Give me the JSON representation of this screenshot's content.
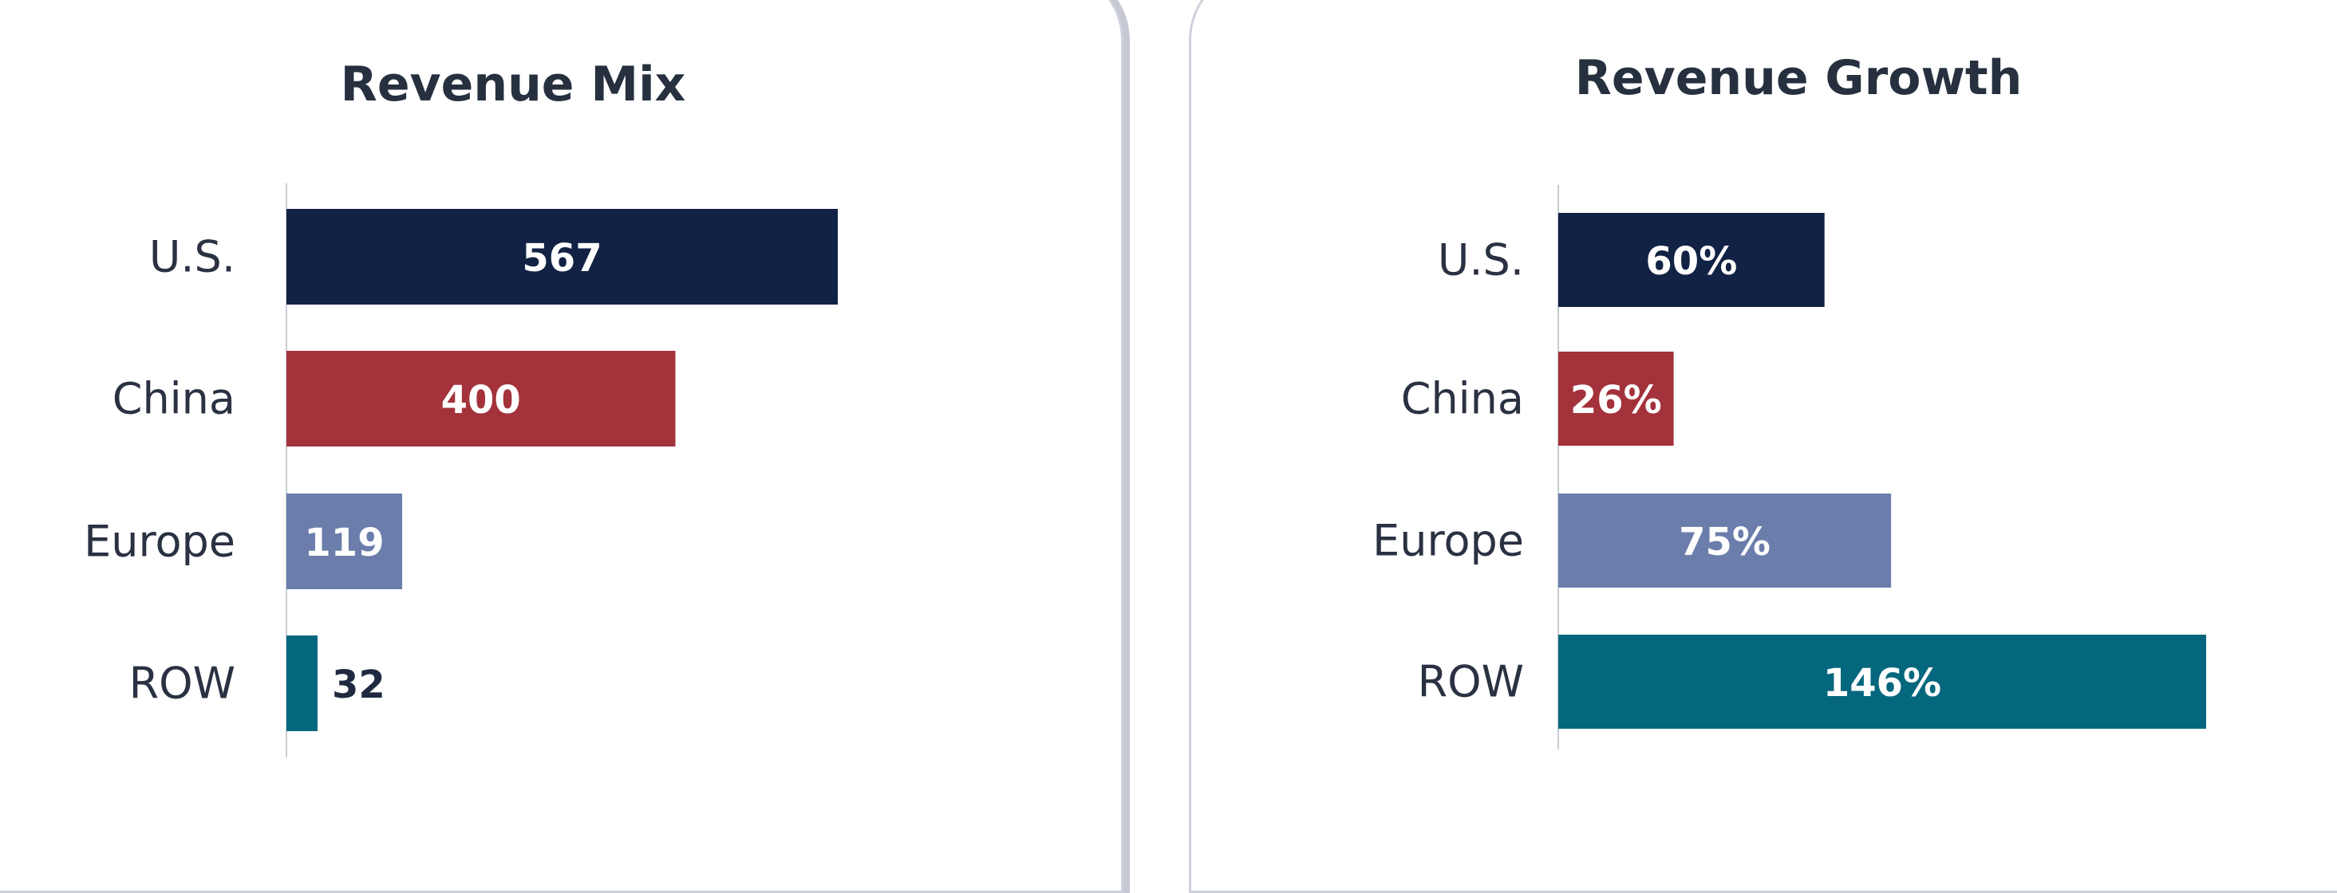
{
  "chart_data": [
    {
      "type": "bar",
      "orientation": "horizontal",
      "title": "Revenue Mix",
      "categories": [
        "U.S.",
        "China",
        "Europe",
        "ROW"
      ],
      "values": [
        567,
        400,
        119,
        32
      ],
      "labels": [
        "567",
        "400",
        "119",
        "32"
      ],
      "colors": [
        "#112244",
        "#a4323b",
        "#6a7dab",
        "#05677d"
      ],
      "xlim": [
        0,
        567
      ],
      "grid": false,
      "legend": "none"
    },
    {
      "type": "bar",
      "orientation": "horizontal",
      "title": "Revenue Growth",
      "categories": [
        "U.S.",
        "China",
        "Europe",
        "ROW"
      ],
      "values": [
        60,
        26,
        75,
        146
      ],
      "labels": [
        "60%",
        "26%",
        "75%",
        "146%"
      ],
      "colors": [
        "#112244",
        "#a4323b",
        "#6a7dab",
        "#05677d"
      ],
      "xlim": [
        0,
        146
      ],
      "grid": false,
      "legend": "none"
    }
  ]
}
